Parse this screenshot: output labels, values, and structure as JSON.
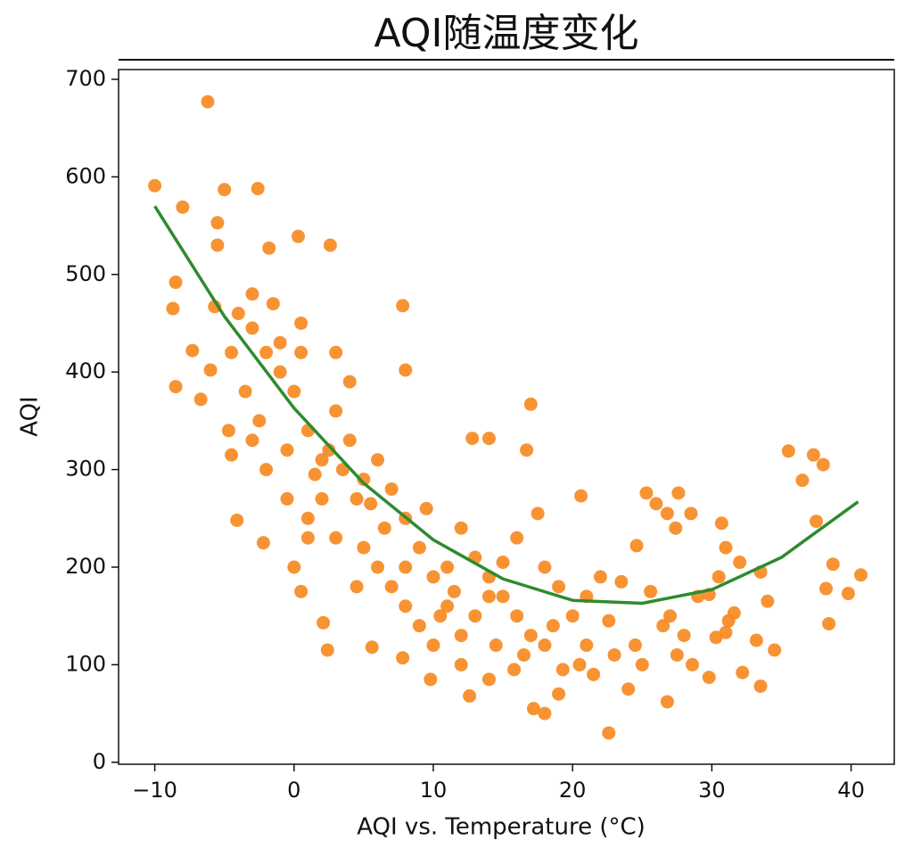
{
  "chart_data": {
    "type": "scatter",
    "title": "AQI随温度变化",
    "xlabel": "AQI vs. Temperature (°C)",
    "ylabel": "AQI",
    "xlim": [
      -12.6,
      43.1
    ],
    "ylim": [
      -2,
      710
    ],
    "xticks": [
      {
        "value": -10,
        "label": "−10"
      },
      0,
      10,
      20,
      30,
      40
    ],
    "yticks": [
      0,
      100,
      200,
      300,
      400,
      500,
      600,
      700
    ],
    "series": [
      {
        "type": "scatter",
        "color": "#f7871e",
        "x": [
          -6.2,
          -10,
          -8,
          -5,
          -2.6,
          -5.5,
          -5.5,
          -1.8,
          0.3,
          2.6,
          35.5,
          37.3,
          38,
          36.5,
          37.5,
          38.7,
          40.7,
          38.2,
          39.8,
          38.4,
          22.6,
          17.2,
          18,
          26.8,
          12.6,
          9.8,
          33.5,
          32.2,
          29.8,
          17,
          16.7,
          14,
          12.8,
          7.8,
          8,
          -8.5,
          -8.7,
          -8.5,
          -7.3,
          -6.7,
          -6,
          -5.7,
          -4.7,
          -4.5,
          -4.1,
          -2.2,
          0,
          0.5,
          2.1,
          2.4,
          5.6,
          24,
          15.8,
          14,
          7.8,
          20.6,
          25.3,
          27.6,
          28.5,
          30.7,
          31,
          32,
          33.5,
          34,
          34.5,
          33.2,
          31.6,
          31,
          30.3,
          29.8,
          31.2,
          30.5,
          27.4,
          26,
          26.8,
          24.6,
          25.6,
          26.5,
          27.5,
          28.6,
          23.5,
          22.6,
          21,
          19.3,
          18.6,
          18,
          17.5,
          16,
          15,
          14,
          13,
          12,
          11,
          10,
          9,
          8,
          7,
          6,
          5,
          4,
          3,
          2,
          1,
          0,
          -1,
          -2,
          -3,
          -1.5,
          0.5,
          3,
          4,
          2,
          1,
          3,
          5,
          6,
          7,
          8,
          9,
          10,
          11,
          12,
          13,
          14,
          15,
          16,
          17,
          18,
          19,
          20,
          21,
          22,
          20.5,
          16.5,
          11.5,
          10.5,
          9.5,
          6.5,
          5.5,
          4.5,
          3.5,
          2.5,
          1.5,
          -0.5,
          -2.5,
          -3.5,
          -4,
          -3,
          -1,
          0.5,
          -4.5,
          -3,
          -2,
          -0.5,
          1,
          4.5,
          8,
          12,
          14.5,
          19,
          21.5,
          23,
          24.5,
          25,
          29,
          28,
          27
        ],
        "values": [
          677,
          591,
          569,
          587,
          588,
          553,
          530,
          527,
          539,
          530,
          319,
          315,
          305,
          289,
          247,
          203,
          192,
          178,
          173,
          142,
          30,
          55,
          50,
          62,
          68,
          85,
          78,
          92,
          87,
          367,
          320,
          332,
          332,
          468,
          402,
          385,
          465,
          492,
          422,
          372,
          402,
          467,
          340,
          315,
          248,
          225,
          200,
          175,
          143,
          115,
          118,
          75,
          95,
          85,
          107,
          273,
          276,
          276,
          255,
          245,
          220,
          205,
          195,
          165,
          115,
          125,
          153,
          133,
          128,
          172,
          145,
          190,
          240,
          265,
          255,
          222,
          175,
          140,
          110,
          100,
          185,
          145,
          120,
          95,
          140,
          200,
          255,
          230,
          205,
          170,
          150,
          130,
          160,
          190,
          220,
          250,
          280,
          310,
          290,
          330,
          360,
          310,
          340,
          380,
          400,
          420,
          445,
          470,
          450,
          420,
          390,
          270,
          250,
          230,
          220,
          200,
          180,
          160,
          140,
          120,
          200,
          240,
          210,
          190,
          170,
          150,
          130,
          120,
          180,
          150,
          170,
          190,
          100,
          110,
          175,
          150,
          260,
          240,
          265,
          270,
          300,
          320,
          295,
          320,
          350,
          380,
          460,
          480,
          430,
          420,
          420,
          330,
          300,
          270,
          230,
          180,
          200,
          100,
          120,
          70,
          90,
          110,
          120,
          100,
          170,
          130,
          150
        ]
      },
      {
        "type": "line",
        "color": "#2e8b2e",
        "x": [
          -10,
          -5,
          0,
          5,
          10,
          15,
          20,
          25,
          30,
          35,
          40.5
        ],
        "values": [
          570,
          457,
          363,
          286,
          228,
          188,
          166,
          163,
          177,
          210,
          267
        ]
      }
    ]
  }
}
